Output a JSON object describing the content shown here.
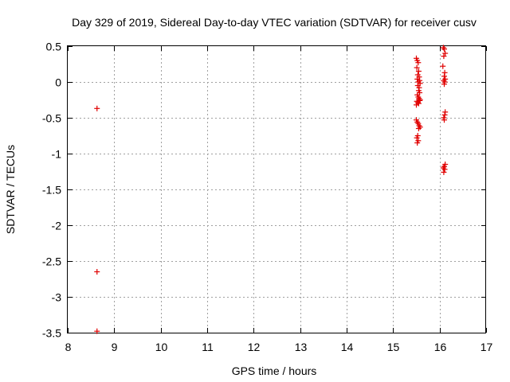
{
  "chart_data": {
    "type": "scatter",
    "title": "Day 329 of 2019, Sidereal Day-to-day VTEC variation (SDTVAR) for receiver cusv",
    "xlabel": "GPS time / hours",
    "ylabel": "SDTVAR / TECUs",
    "xlim": [
      8,
      17
    ],
    "ylim": [
      -3.5,
      0.5
    ],
    "xticks": [
      8,
      9,
      10,
      11,
      12,
      13,
      14,
      15,
      16,
      17
    ],
    "yticks": [
      0.5,
      0,
      -0.5,
      -1,
      -1.5,
      -2,
      -2.5,
      -3,
      -3.5
    ],
    "xtick_labels": [
      "8",
      "9",
      "10",
      "11",
      "12",
      "13",
      "14",
      "15",
      "16",
      "17"
    ],
    "ytick_labels": [
      "0.5",
      "0",
      "-0.5",
      "-1",
      "-1.5",
      "-2",
      "-2.5",
      "-3",
      "-3.5"
    ],
    "grid": true,
    "marker": "+",
    "color": "#e00000",
    "points": [
      [
        8.63,
        -0.37
      ],
      [
        8.63,
        -2.65
      ],
      [
        8.63,
        -3.48
      ],
      [
        15.5,
        0.33
      ],
      [
        15.52,
        0.3
      ],
      [
        15.54,
        0.27
      ],
      [
        15.51,
        0.2
      ],
      [
        15.55,
        0.15
      ],
      [
        15.53,
        0.1
      ],
      [
        15.56,
        0.07
      ],
      [
        15.52,
        0.04
      ],
      [
        15.57,
        0.02
      ],
      [
        15.54,
        0.0
      ],
      [
        15.58,
        -0.02
      ],
      [
        15.53,
        -0.05
      ],
      [
        15.56,
        -0.08
      ],
      [
        15.55,
        -0.12
      ],
      [
        15.57,
        -0.15
      ],
      [
        15.52,
        -0.18
      ],
      [
        15.54,
        -0.21
      ],
      [
        15.56,
        -0.23
      ],
      [
        15.58,
        -0.25
      ],
      [
        15.51,
        -0.27
      ],
      [
        15.53,
        -0.29
      ],
      [
        15.55,
        -0.3
      ],
      [
        15.5,
        -0.32
      ],
      [
        15.57,
        -0.26
      ],
      [
        15.5,
        -0.53
      ],
      [
        15.52,
        -0.56
      ],
      [
        15.54,
        -0.58
      ],
      [
        15.56,
        -0.61
      ],
      [
        15.58,
        -0.63
      ],
      [
        15.55,
        -0.65
      ],
      [
        15.53,
        -0.75
      ],
      [
        15.51,
        -0.78
      ],
      [
        15.54,
        -0.82
      ],
      [
        15.52,
        -0.85
      ],
      [
        16.08,
        0.48
      ],
      [
        16.1,
        0.46
      ],
      [
        16.12,
        0.4
      ],
      [
        16.09,
        0.36
      ],
      [
        16.07,
        0.22
      ],
      [
        16.11,
        0.13
      ],
      [
        16.1,
        0.08
      ],
      [
        16.12,
        0.04
      ],
      [
        16.09,
        0.02
      ],
      [
        16.11,
        0.0
      ],
      [
        16.1,
        -0.03
      ],
      [
        16.12,
        -0.42
      ],
      [
        16.11,
        -0.46
      ],
      [
        16.09,
        -0.5
      ],
      [
        16.1,
        -0.53
      ],
      [
        16.12,
        -1.15
      ],
      [
        16.1,
        -1.18
      ],
      [
        16.08,
        -1.2
      ],
      [
        16.11,
        -1.22
      ],
      [
        16.09,
        -1.26
      ]
    ]
  }
}
